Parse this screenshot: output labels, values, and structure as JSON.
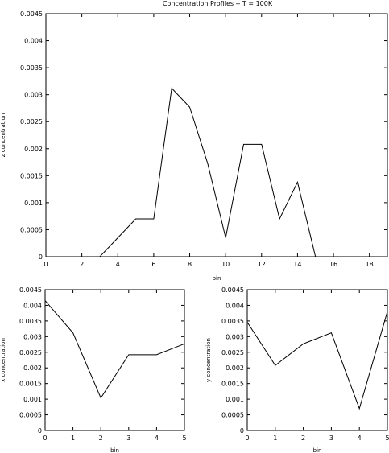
{
  "colors": {
    "line": "#000000",
    "axis": "#000000",
    "background": "#ffffff"
  },
  "chart_data": [
    {
      "type": "line",
      "title": "Concentration Profiles -- T = 100K",
      "xlabel": "bin",
      "ylabel": "z concentration",
      "xlim": [
        0,
        19
      ],
      "ylim": [
        0,
        0.0045
      ],
      "xticks": [
        "0",
        "2",
        "4",
        "6",
        "8",
        "10",
        "12",
        "14",
        "16",
        "18"
      ],
      "yticks": [
        "0",
        "0.0005",
        "0.001",
        "0.0015",
        "0.002",
        "0.0025",
        "0.003",
        "0.0035",
        "0.004",
        "0.0045"
      ],
      "x": [
        0,
        1,
        2,
        3,
        4,
        5,
        6,
        7,
        8,
        9,
        10,
        11,
        12,
        13,
        14,
        15,
        16,
        17,
        18,
        19
      ],
      "y": [
        0,
        0,
        0,
        0,
        0.00035,
        0.0007,
        0.0007,
        0.00312,
        0.00277,
        0.00173,
        0.00035,
        0.00208,
        0.00208,
        0.0007,
        0.00138,
        0,
        0,
        0,
        0,
        0
      ]
    },
    {
      "type": "line",
      "xlabel": "bin",
      "ylabel": "x concentration",
      "xlim": [
        0,
        5
      ],
      "ylim": [
        0,
        0.0045
      ],
      "xticks": [
        "0",
        "1",
        "2",
        "3",
        "4",
        "5"
      ],
      "yticks": [
        "0",
        "0.0005",
        "0.001",
        "0.0015",
        "0.002",
        "0.0025",
        "0.003",
        "0.0035",
        "0.004",
        "0.0045"
      ],
      "x": [
        0,
        1,
        2,
        3,
        4,
        5
      ],
      "y": [
        0.00415,
        0.00312,
        0.00104,
        0.00242,
        0.00242,
        0.00277
      ]
    },
    {
      "type": "line",
      "xlabel": "bin",
      "ylabel": "y concentration",
      "xlim": [
        0,
        5
      ],
      "ylim": [
        0,
        0.0045
      ],
      "xticks": [
        "0",
        "1",
        "2",
        "3",
        "4",
        "5"
      ],
      "yticks": [
        "0",
        "0.0005",
        "0.001",
        "0.0015",
        "0.002",
        "0.0025",
        "0.003",
        "0.0035",
        "0.004",
        "0.0045"
      ],
      "x": [
        0,
        1,
        2,
        3,
        4,
        5
      ],
      "y": [
        0.00346,
        0.00208,
        0.00277,
        0.00312,
        0.0007,
        0.0038
      ]
    }
  ]
}
